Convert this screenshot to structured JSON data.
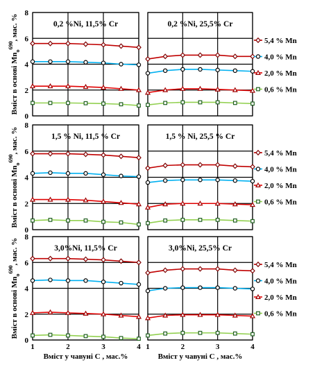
{
  "chart_data": [
    {
      "type": "line",
      "title": "0,2 %Ni, 11,5% Cr",
      "ylabel": {
        "main": "Вміст в основі Mn",
        "sub": "o",
        "sup": "690",
        "tail": ", мас. %"
      },
      "x": [
        1,
        1.5,
        2,
        2.5,
        3,
        3.5,
        4
      ],
      "xlim": [
        1,
        4
      ],
      "xticks": [
        1,
        2,
        3,
        4
      ],
      "ylim": [
        0,
        8
      ],
      "yticks": [
        0,
        2,
        4,
        6,
        8
      ],
      "grid": true,
      "series": [
        {
          "color": "#c00000",
          "marker": "diamond",
          "values": [
            5.6,
            5.6,
            5.6,
            5.55,
            5.5,
            5.4,
            5.3
          ]
        },
        {
          "color": "#00b0f0",
          "marker": "circle",
          "values": [
            4.2,
            4.2,
            4.2,
            4.15,
            4.1,
            4.0,
            3.95
          ]
        },
        {
          "color": "#e00000",
          "marker": "triangle",
          "values": [
            2.3,
            2.3,
            2.3,
            2.25,
            2.2,
            2.1,
            2.0
          ]
        },
        {
          "color": "#92d050",
          "marker": "square",
          "values": [
            1.0,
            1.0,
            1.0,
            0.98,
            0.95,
            0.9,
            0.8
          ]
        }
      ]
    },
    {
      "type": "line",
      "title": "0,2 %Ni, 25,5% Cr",
      "x": [
        1,
        1.5,
        2,
        2.5,
        3,
        3.5,
        4
      ],
      "xlim": [
        1,
        4
      ],
      "xticks": [
        1,
        2,
        3,
        4
      ],
      "ylim": [
        0,
        8
      ],
      "yticks": [
        0,
        2,
        4,
        6,
        8
      ],
      "grid": true,
      "series": [
        {
          "name": "5,4 % Mn",
          "color": "#c00000",
          "marker": "diamond",
          "values": [
            4.4,
            4.6,
            4.7,
            4.7,
            4.7,
            4.6,
            4.6
          ]
        },
        {
          "name": "4,0 % Mn",
          "color": "#00b0f0",
          "marker": "circle",
          "values": [
            3.3,
            3.5,
            3.6,
            3.6,
            3.55,
            3.5,
            3.45
          ]
        },
        {
          "name": "2,0 % Mn",
          "color": "#e00000",
          "marker": "triangle",
          "values": [
            1.8,
            2.0,
            2.1,
            2.1,
            2.05,
            2.0,
            1.95
          ]
        },
        {
          "name": "0,6 % Mn",
          "color": "#92d050",
          "marker": "square",
          "values": [
            0.85,
            1.0,
            1.05,
            1.05,
            1.05,
            1.0,
            0.95
          ]
        }
      ]
    },
    {
      "type": "line",
      "title": "1,5 % Ni, 11,5 % Cr",
      "ylabel": {
        "main": "Вміст в основі Mn",
        "sub": "o",
        "sup": "690",
        "tail": ", мас. %"
      },
      "x": [
        1,
        1.5,
        2,
        2.5,
        3,
        3.5,
        4
      ],
      "xlim": [
        1,
        4
      ],
      "xticks": [
        1,
        2,
        3,
        4
      ],
      "ylim": [
        0,
        8
      ],
      "yticks": [
        0,
        2,
        4,
        6,
        8
      ],
      "grid": true,
      "series": [
        {
          "color": "#c00000",
          "marker": "diamond",
          "values": [
            5.8,
            5.8,
            5.8,
            5.75,
            5.7,
            5.6,
            5.5
          ]
        },
        {
          "color": "#00b0f0",
          "marker": "circle",
          "values": [
            4.3,
            4.35,
            4.3,
            4.3,
            4.2,
            4.1,
            4.05
          ]
        },
        {
          "color": "#e00000",
          "marker": "triangle",
          "values": [
            2.3,
            2.3,
            2.3,
            2.25,
            2.15,
            2.05,
            1.95
          ]
        },
        {
          "color": "#92d050",
          "marker": "square",
          "values": [
            0.7,
            0.75,
            0.7,
            0.7,
            0.6,
            0.55,
            0.4
          ]
        }
      ]
    },
    {
      "type": "line",
      "title": "1,5 % Ni, 25,5 % Cr",
      "x": [
        1,
        1.5,
        2,
        2.5,
        3,
        3.5,
        4
      ],
      "xlim": [
        1,
        4
      ],
      "xticks": [
        1,
        2,
        3,
        4
      ],
      "ylim": [
        0,
        8
      ],
      "yticks": [
        0,
        2,
        4,
        6,
        8
      ],
      "grid": true,
      "series": [
        {
          "name": "5,4 % Mn",
          "color": "#c00000",
          "marker": "diamond",
          "values": [
            4.7,
            4.9,
            4.95,
            4.95,
            4.95,
            4.85,
            4.8
          ]
        },
        {
          "name": "4,0 % Mn",
          "color": "#00b0f0",
          "marker": "circle",
          "values": [
            3.6,
            3.75,
            3.8,
            3.8,
            3.8,
            3.75,
            3.7
          ]
        },
        {
          "name": "2,0 % Mn",
          "color": "#e00000",
          "marker": "triangle",
          "values": [
            1.7,
            1.95,
            2.0,
            2.0,
            2.0,
            1.95,
            1.9
          ]
        },
        {
          "name": "0,6 % Mn",
          "color": "#92d050",
          "marker": "square",
          "values": [
            0.5,
            0.7,
            0.75,
            0.75,
            0.75,
            0.7,
            0.65
          ]
        }
      ]
    },
    {
      "type": "line",
      "title": "3,0%Ni, 11,5% Cr",
      "xlabel": "Вміст у чавуні С , мас.%",
      "ylabel": {
        "main": "Вміст в основі Mn",
        "sub": "o",
        "sup": "690",
        "tail": ", мас. %"
      },
      "x": [
        1,
        1.5,
        2,
        2.5,
        3,
        3.5,
        4
      ],
      "xlim": [
        1,
        4
      ],
      "xticks": [
        1,
        2,
        3,
        4
      ],
      "ylim": [
        0,
        8
      ],
      "yticks": [
        0,
        2,
        4,
        6,
        8
      ],
      "grid": true,
      "series": [
        {
          "color": "#c00000",
          "marker": "diamond",
          "values": [
            6.3,
            6.3,
            6.3,
            6.25,
            6.2,
            6.1,
            6.0
          ]
        },
        {
          "color": "#00b0f0",
          "marker": "circle",
          "values": [
            4.6,
            4.65,
            4.6,
            4.6,
            4.5,
            4.4,
            4.3
          ]
        },
        {
          "color": "#e00000",
          "marker": "triangle",
          "values": [
            2.1,
            2.15,
            2.1,
            2.05,
            2.0,
            1.9,
            1.8
          ]
        },
        {
          "color": "#92d050",
          "marker": "square",
          "values": [
            0.35,
            0.4,
            0.35,
            0.3,
            0.25,
            0.15,
            0.1
          ]
        }
      ]
    },
    {
      "type": "line",
      "title": "3,0%Ni, 25,5% Cr",
      "xlabel": "Вміст у чавуні С , мас.%",
      "x": [
        1,
        1.5,
        2,
        2.5,
        3,
        3.5,
        4
      ],
      "xlim": [
        1,
        4
      ],
      "xticks": [
        1,
        2,
        3,
        4
      ],
      "ylim": [
        0,
        8
      ],
      "yticks": [
        0,
        2,
        4,
        6,
        8
      ],
      "grid": true,
      "series": [
        {
          "name": "5,4 % Mn",
          "color": "#c00000",
          "marker": "diamond",
          "values": [
            5.2,
            5.4,
            5.5,
            5.5,
            5.5,
            5.4,
            5.35
          ]
        },
        {
          "name": "4,0 % Mn",
          "color": "#00b0f0",
          "marker": "circle",
          "values": [
            3.8,
            4.0,
            4.05,
            4.05,
            4.05,
            4.0,
            3.95
          ]
        },
        {
          "name": "2,0 % Mn",
          "color": "#e00000",
          "marker": "triangle",
          "values": [
            1.7,
            1.9,
            1.95,
            1.95,
            1.95,
            1.9,
            1.85
          ]
        },
        {
          "name": "0,6 % Mn",
          "color": "#92d050",
          "marker": "square",
          "values": [
            0.35,
            0.5,
            0.55,
            0.55,
            0.55,
            0.5,
            0.45
          ]
        }
      ]
    }
  ]
}
